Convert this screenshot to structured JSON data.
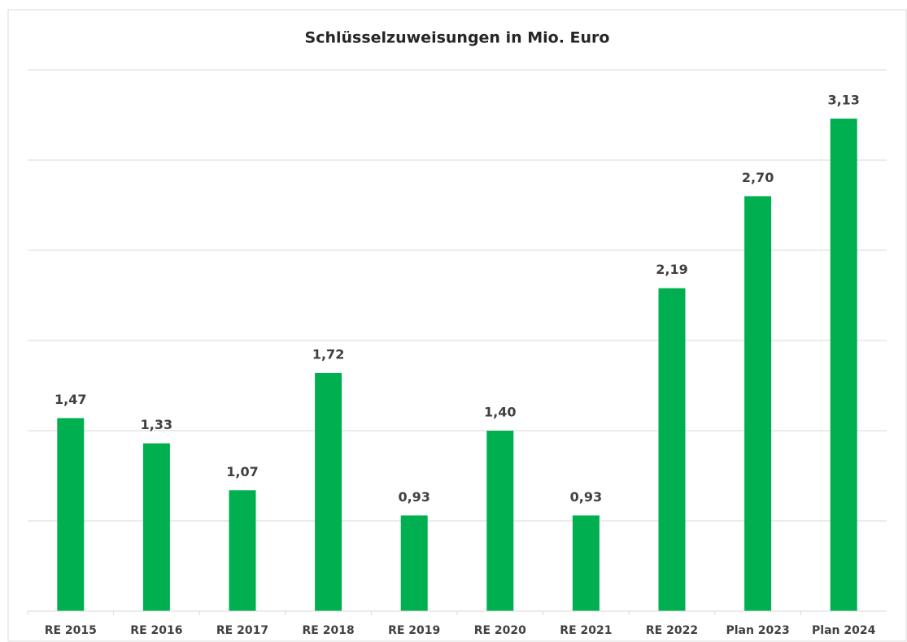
{
  "chart_data": {
    "type": "bar",
    "title": "Schlüsselzuweisungen in Mio. Euro",
    "categories": [
      "RE 2015",
      "RE 2016",
      "RE 2017",
      "RE 2018",
      "RE 2019",
      "RE 2020",
      "RE 2021",
      "RE 2022",
      "Plan 2023",
      "Plan 2024"
    ],
    "values": [
      1.47,
      1.33,
      1.07,
      1.72,
      0.93,
      1.4,
      0.93,
      2.19,
      2.7,
      3.13
    ],
    "value_labels": [
      "1,47",
      "1,33",
      "1,07",
      "1,72",
      "0,93",
      "1,40",
      "0,93",
      "2,19",
      "2,70",
      "3,13"
    ],
    "color": "#00b050",
    "ylim": [
      0.4,
      3.4
    ],
    "yticks": [
      0.4,
      0.9,
      1.4,
      1.9,
      2.4,
      2.9,
      3.4
    ],
    "grid": true,
    "ytick_labels_shown": false
  }
}
